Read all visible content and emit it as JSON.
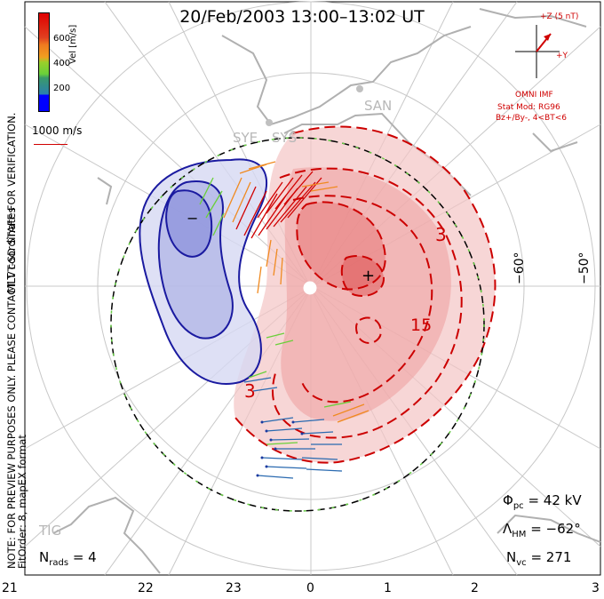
{
  "title": "20/Feb/2003 13:00–13:02 UT",
  "coordinates_label": "MLT coordinates",
  "colorbar": {
    "label": "Vel [m/s]",
    "ticks": [
      "600",
      "400",
      "200"
    ]
  },
  "reference_vector": "1000 m/s",
  "side_note": "NOTE: FOR PREVIEW PURPOSES ONLY. PLEASE CONTACT VT-SD STAFF FOR VERIFICATION.",
  "fit_note": "FitOrder: 8, mapEX format",
  "imf": {
    "z_label": "+Z (5 nT)",
    "y_label": "+Y",
    "source": "OMNI IMF",
    "model_line1": "Stat Mod: RG96",
    "model_line2": "Bz+/By-, 4<BT<6"
  },
  "stations": [
    "SAN",
    "SYE",
    "SYS",
    "TIG"
  ],
  "stats": {
    "phi_pc_symbol": "Φ",
    "phi_pc_sub": "pc",
    "phi_pc_value": "= 42 kV",
    "lambda_hm_symbol": "Λ",
    "lambda_hm_sub": "HM",
    "lambda_hm_value": "= −62°",
    "n_vc_symbol": "N",
    "n_vc_sub": "vc",
    "n_vc_value": "= 271",
    "n_rads_symbol": "N",
    "n_rads_sub": "rads",
    "n_rads_value": "= 4"
  },
  "mlt_labels": [
    "21",
    "22",
    "23",
    "0",
    "1",
    "2",
    "3"
  ],
  "lat_labels": [
    "−60°",
    "−50°"
  ],
  "contour_labels": [
    "3",
    "15",
    "3",
    "−",
    "+"
  ],
  "colors": {
    "negative_potential": "#1a1aa0",
    "positive_potential": "#cc0000",
    "hmb": "#000000"
  }
}
